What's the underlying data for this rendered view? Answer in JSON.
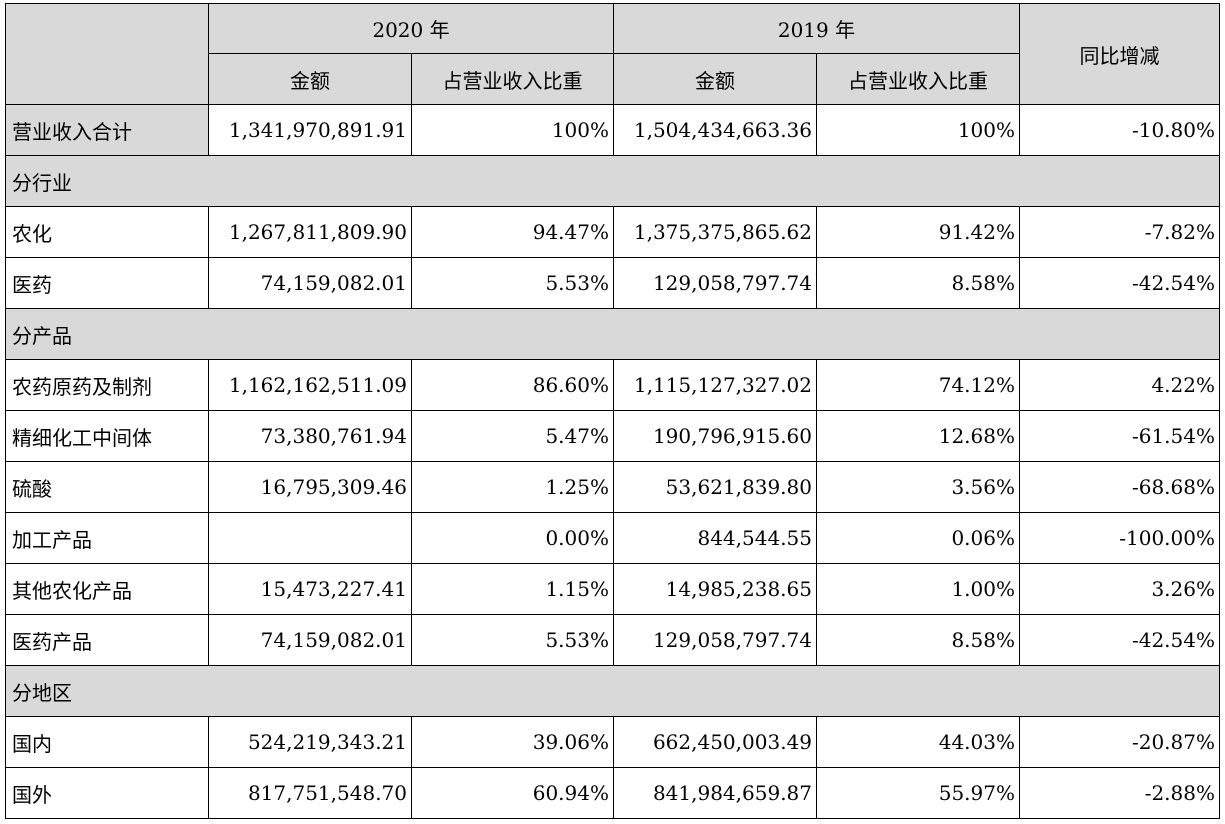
{
  "header": {
    "year_2020": "2020 年",
    "year_2019": "2019 年",
    "yoy": "同比增减",
    "amount": "金额",
    "ratio": "占营业收入比重"
  },
  "rows": [
    {
      "type": "total",
      "label": "营业收入合计",
      "a2020": "1,341,970,891.91",
      "r2020": "100%",
      "a2019": "1,504,434,663.36",
      "r2019": "100%",
      "yoy": "-10.80%"
    },
    {
      "type": "section",
      "label": "分行业"
    },
    {
      "type": "data",
      "label": "农化",
      "a2020": "1,267,811,809.90",
      "r2020": "94.47%",
      "a2019": "1,375,375,865.62",
      "r2019": "91.42%",
      "yoy": "-7.82%"
    },
    {
      "type": "data",
      "label": "医药",
      "a2020": "74,159,082.01",
      "r2020": "5.53%",
      "a2019": "129,058,797.74",
      "r2019": "8.58%",
      "yoy": "-42.54%"
    },
    {
      "type": "section",
      "label": "分产品"
    },
    {
      "type": "data",
      "label": "农药原药及制剂",
      "a2020": "1,162,162,511.09",
      "r2020": "86.60%",
      "a2019": "1,115,127,327.02",
      "r2019": "74.12%",
      "yoy": "4.22%"
    },
    {
      "type": "data",
      "label": "精细化工中间体",
      "a2020": "73,380,761.94",
      "r2020": "5.47%",
      "a2019": "190,796,915.60",
      "r2019": "12.68%",
      "yoy": "-61.54%"
    },
    {
      "type": "data",
      "label": "硫酸",
      "a2020": "16,795,309.46",
      "r2020": "1.25%",
      "a2019": "53,621,839.80",
      "r2019": "3.56%",
      "yoy": "-68.68%"
    },
    {
      "type": "data",
      "label": "加工产品",
      "a2020": "",
      "r2020": "0.00%",
      "a2019": "844,544.55",
      "r2019": "0.06%",
      "yoy": "-100.00%"
    },
    {
      "type": "data",
      "label": "其他农化产品",
      "a2020": "15,473,227.41",
      "r2020": "1.15%",
      "a2019": "14,985,238.65",
      "r2019": "1.00%",
      "yoy": "3.26%"
    },
    {
      "type": "data",
      "label": "医药产品",
      "a2020": "74,159,082.01",
      "r2020": "5.53%",
      "a2019": "129,058,797.74",
      "r2019": "8.58%",
      "yoy": "-42.54%"
    },
    {
      "type": "section",
      "label": "分地区"
    },
    {
      "type": "data",
      "label": "国内",
      "a2020": "524,219,343.21",
      "r2020": "39.06%",
      "a2019": "662,450,003.49",
      "r2019": "44.03%",
      "yoy": "-20.87%"
    },
    {
      "type": "data",
      "label": "国外",
      "a2020": "817,751,548.70",
      "r2020": "60.94%",
      "a2019": "841,984,659.87",
      "r2019": "55.97%",
      "yoy": "-2.88%"
    }
  ]
}
